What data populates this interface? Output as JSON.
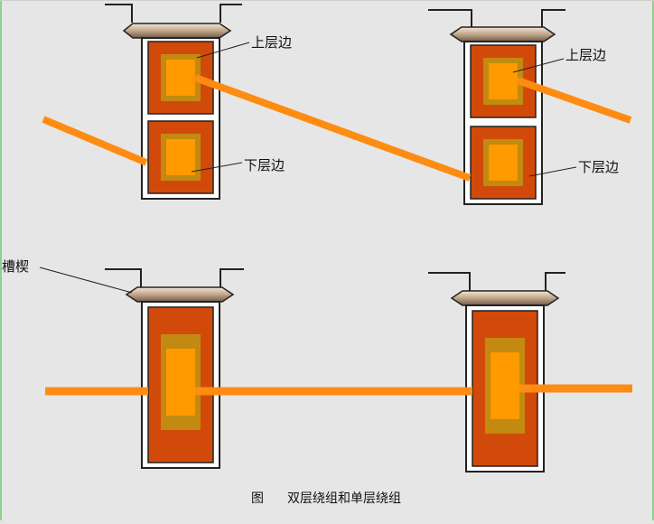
{
  "labels": {
    "top_left_upper": "上层边",
    "top_left_lower": "下层边",
    "top_right_upper": "上层边",
    "top_right_lower": "下层边",
    "wedge": "槽楔"
  },
  "caption": {
    "prefix": "图",
    "title": "双层绕组和单层绕组"
  },
  "colors": {
    "background": "#e6e6e6",
    "slot_outline": "#222222",
    "slot_fill": "#ffffff",
    "coil_outer": "#d24a0a",
    "coil_border": "#c28a10",
    "coil_inner": "#ff9a00",
    "conductor": "#ff8c12",
    "wedge": "#c2a68a"
  }
}
